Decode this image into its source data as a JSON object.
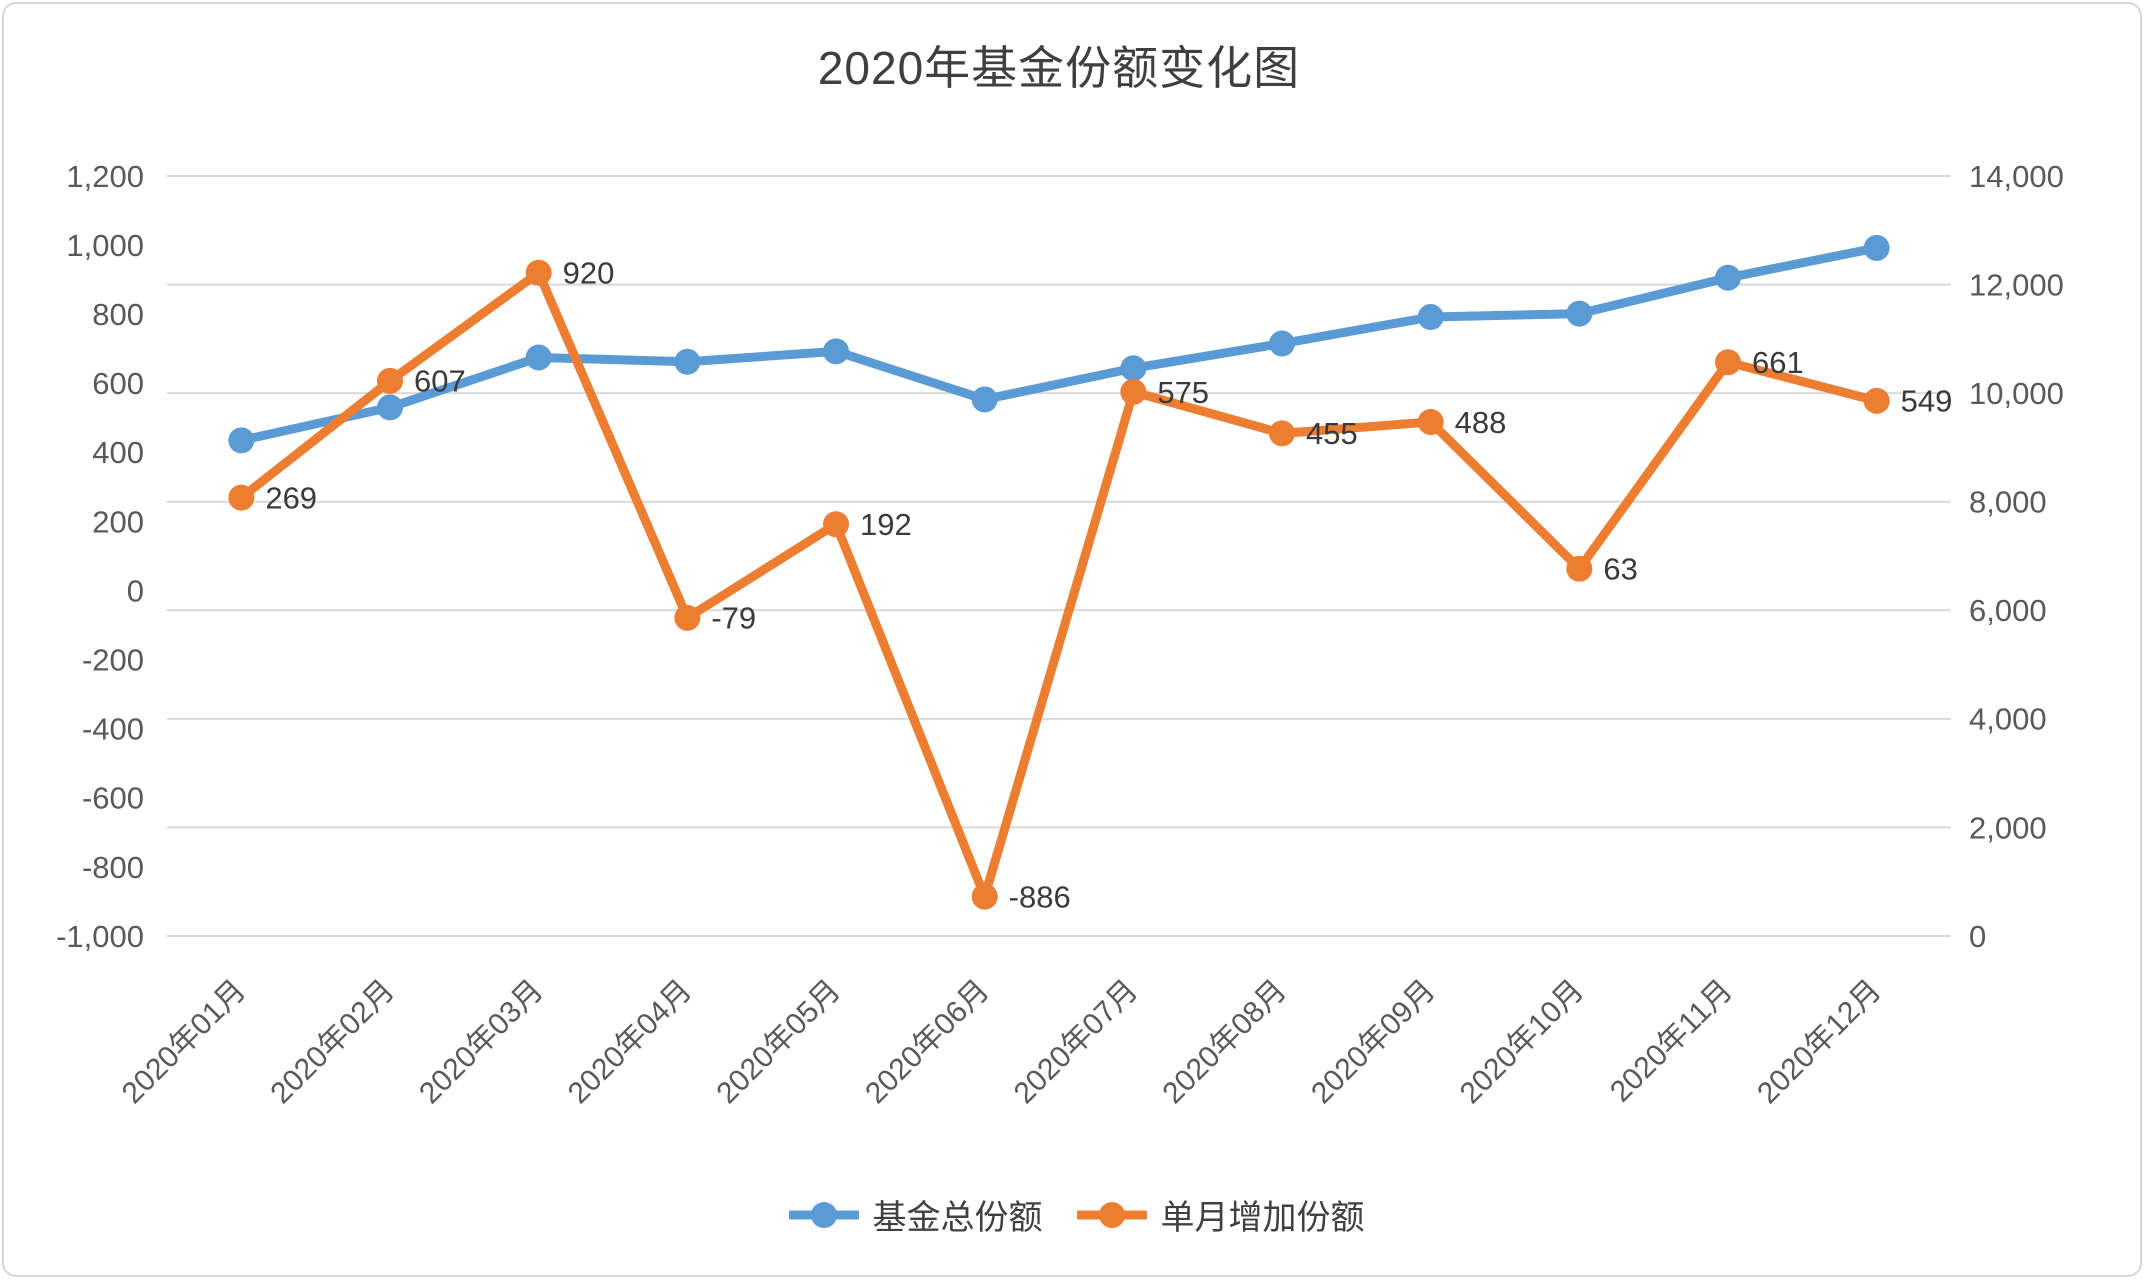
{
  "title": "2020年基金份额变化图",
  "chart_data": {
    "type": "line",
    "title": "2020年基金份额变化图",
    "categories": [
      "2020年01月",
      "2020年02月",
      "2020年03月",
      "2020年04月",
      "2020年05月",
      "2020年06月",
      "2020年07月",
      "2020年08月",
      "2020年09月",
      "2020年10月",
      "2020年11月",
      "2020年12月"
    ],
    "series": [
      {
        "name": "基金总份额",
        "axis": "right",
        "color": "#5B9BD5",
        "values": [
          9130,
          9737,
          10657,
          10578,
          10770,
          9884,
          10459,
          10914,
          11402,
          11465,
          12126,
          12675
        ],
        "show_data_labels": false
      },
      {
        "name": "单月增加份额",
        "axis": "left",
        "color": "#ED7D31",
        "values": [
          269,
          607,
          920,
          -79,
          192,
          -886,
          575,
          455,
          488,
          63,
          661,
          549
        ],
        "labels": [
          "269",
          "607",
          "920",
          "-79",
          "192",
          "-886",
          "575",
          "455",
          "488",
          "63",
          "661",
          "549"
        ],
        "show_data_labels": true
      }
    ],
    "left_axis": {
      "min": -1000,
      "max": 1200,
      "step": 200,
      "tick_labels": [
        "1,200",
        "1,000",
        "800",
        "600",
        "400",
        "200",
        "0",
        "-200",
        "-400",
        "-600",
        "-800",
        "-1,000"
      ]
    },
    "right_axis": {
      "min": 0,
      "max": 14000,
      "step": 2000,
      "tick_labels": [
        "14,000",
        "12,000",
        "10,000",
        "8,000",
        "6,000",
        "4,000",
        "2,000",
        "0"
      ]
    },
    "grid": true,
    "legend_position": "bottom"
  },
  "colors": {
    "series_total": "#5B9BD5",
    "series_monthly": "#ED7D31",
    "gridline": "#D9D9D9",
    "axis_text": "#595959",
    "data_label_text": "#3A3A3A",
    "title_text": "#3F3F3F"
  }
}
